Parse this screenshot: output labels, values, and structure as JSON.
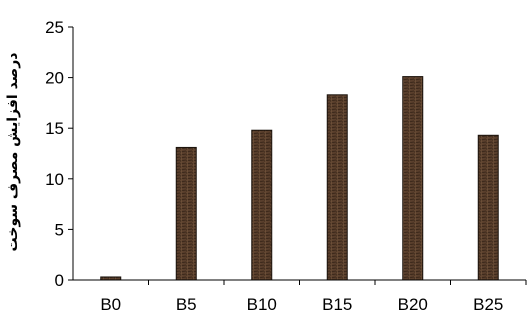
{
  "chart_data": {
    "type": "bar",
    "categories": [
      "B0",
      "B5",
      "B10",
      "B15",
      "B20",
      "B25"
    ],
    "values": [
      0.3,
      13.1,
      14.8,
      18.3,
      20.1,
      14.3
    ],
    "ylim": [
      0,
      25
    ],
    "yticks": [
      0,
      5,
      10,
      15,
      20,
      25
    ],
    "title": "",
    "xlabel": "",
    "ylabel": "درصد افزایش مصرف سوخت",
    "grid": false,
    "legend": "none",
    "bar_color": "#5a3f2c",
    "bar_edge_color": "#1a120c"
  }
}
